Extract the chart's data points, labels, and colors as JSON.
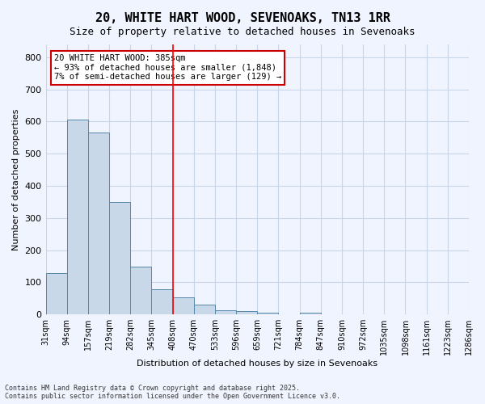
{
  "title_line1": "20, WHITE HART WOOD, SEVENOAKS, TN13 1RR",
  "title_line2": "Size of property relative to detached houses in Sevenoaks",
  "xlabel": "Distribution of detached houses by size in Sevenoaks",
  "ylabel": "Number of detached properties",
  "bar_values": [
    128,
    606,
    565,
    350,
    148,
    78,
    52,
    30,
    13,
    11,
    6,
    0,
    5,
    0,
    0,
    0,
    0,
    0,
    0,
    0
  ],
  "bin_labels": [
    "31sqm",
    "94sqm",
    "157sqm",
    "219sqm",
    "282sqm",
    "345sqm",
    "408sqm",
    "470sqm",
    "533sqm",
    "596sqm",
    "659sqm",
    "721sqm",
    "784sqm",
    "847sqm",
    "910sqm",
    "972sqm",
    "1035sqm",
    "1098sqm",
    "1161sqm",
    "1223sqm",
    "1286sqm"
  ],
  "bar_color": "#c8d8e8",
  "bar_edge_color": "#5588aa",
  "grid_color": "#c8d4e8",
  "background_color": "#f0f4ff",
  "red_line_x": 6.0,
  "annotation_text": "20 WHITE HART WOOD: 385sqm\n← 93% of detached houses are smaller (1,848)\n7% of semi-detached houses are larger (129) →",
  "annotation_box_color": "#ffffff",
  "annotation_border_color": "#cc0000",
  "footer_text": "Contains HM Land Registry data © Crown copyright and database right 2025.\nContains public sector information licensed under the Open Government Licence v3.0.",
  "ylim": [
    0,
    840
  ],
  "yticks": [
    0,
    100,
    200,
    300,
    400,
    500,
    600,
    700,
    800
  ]
}
